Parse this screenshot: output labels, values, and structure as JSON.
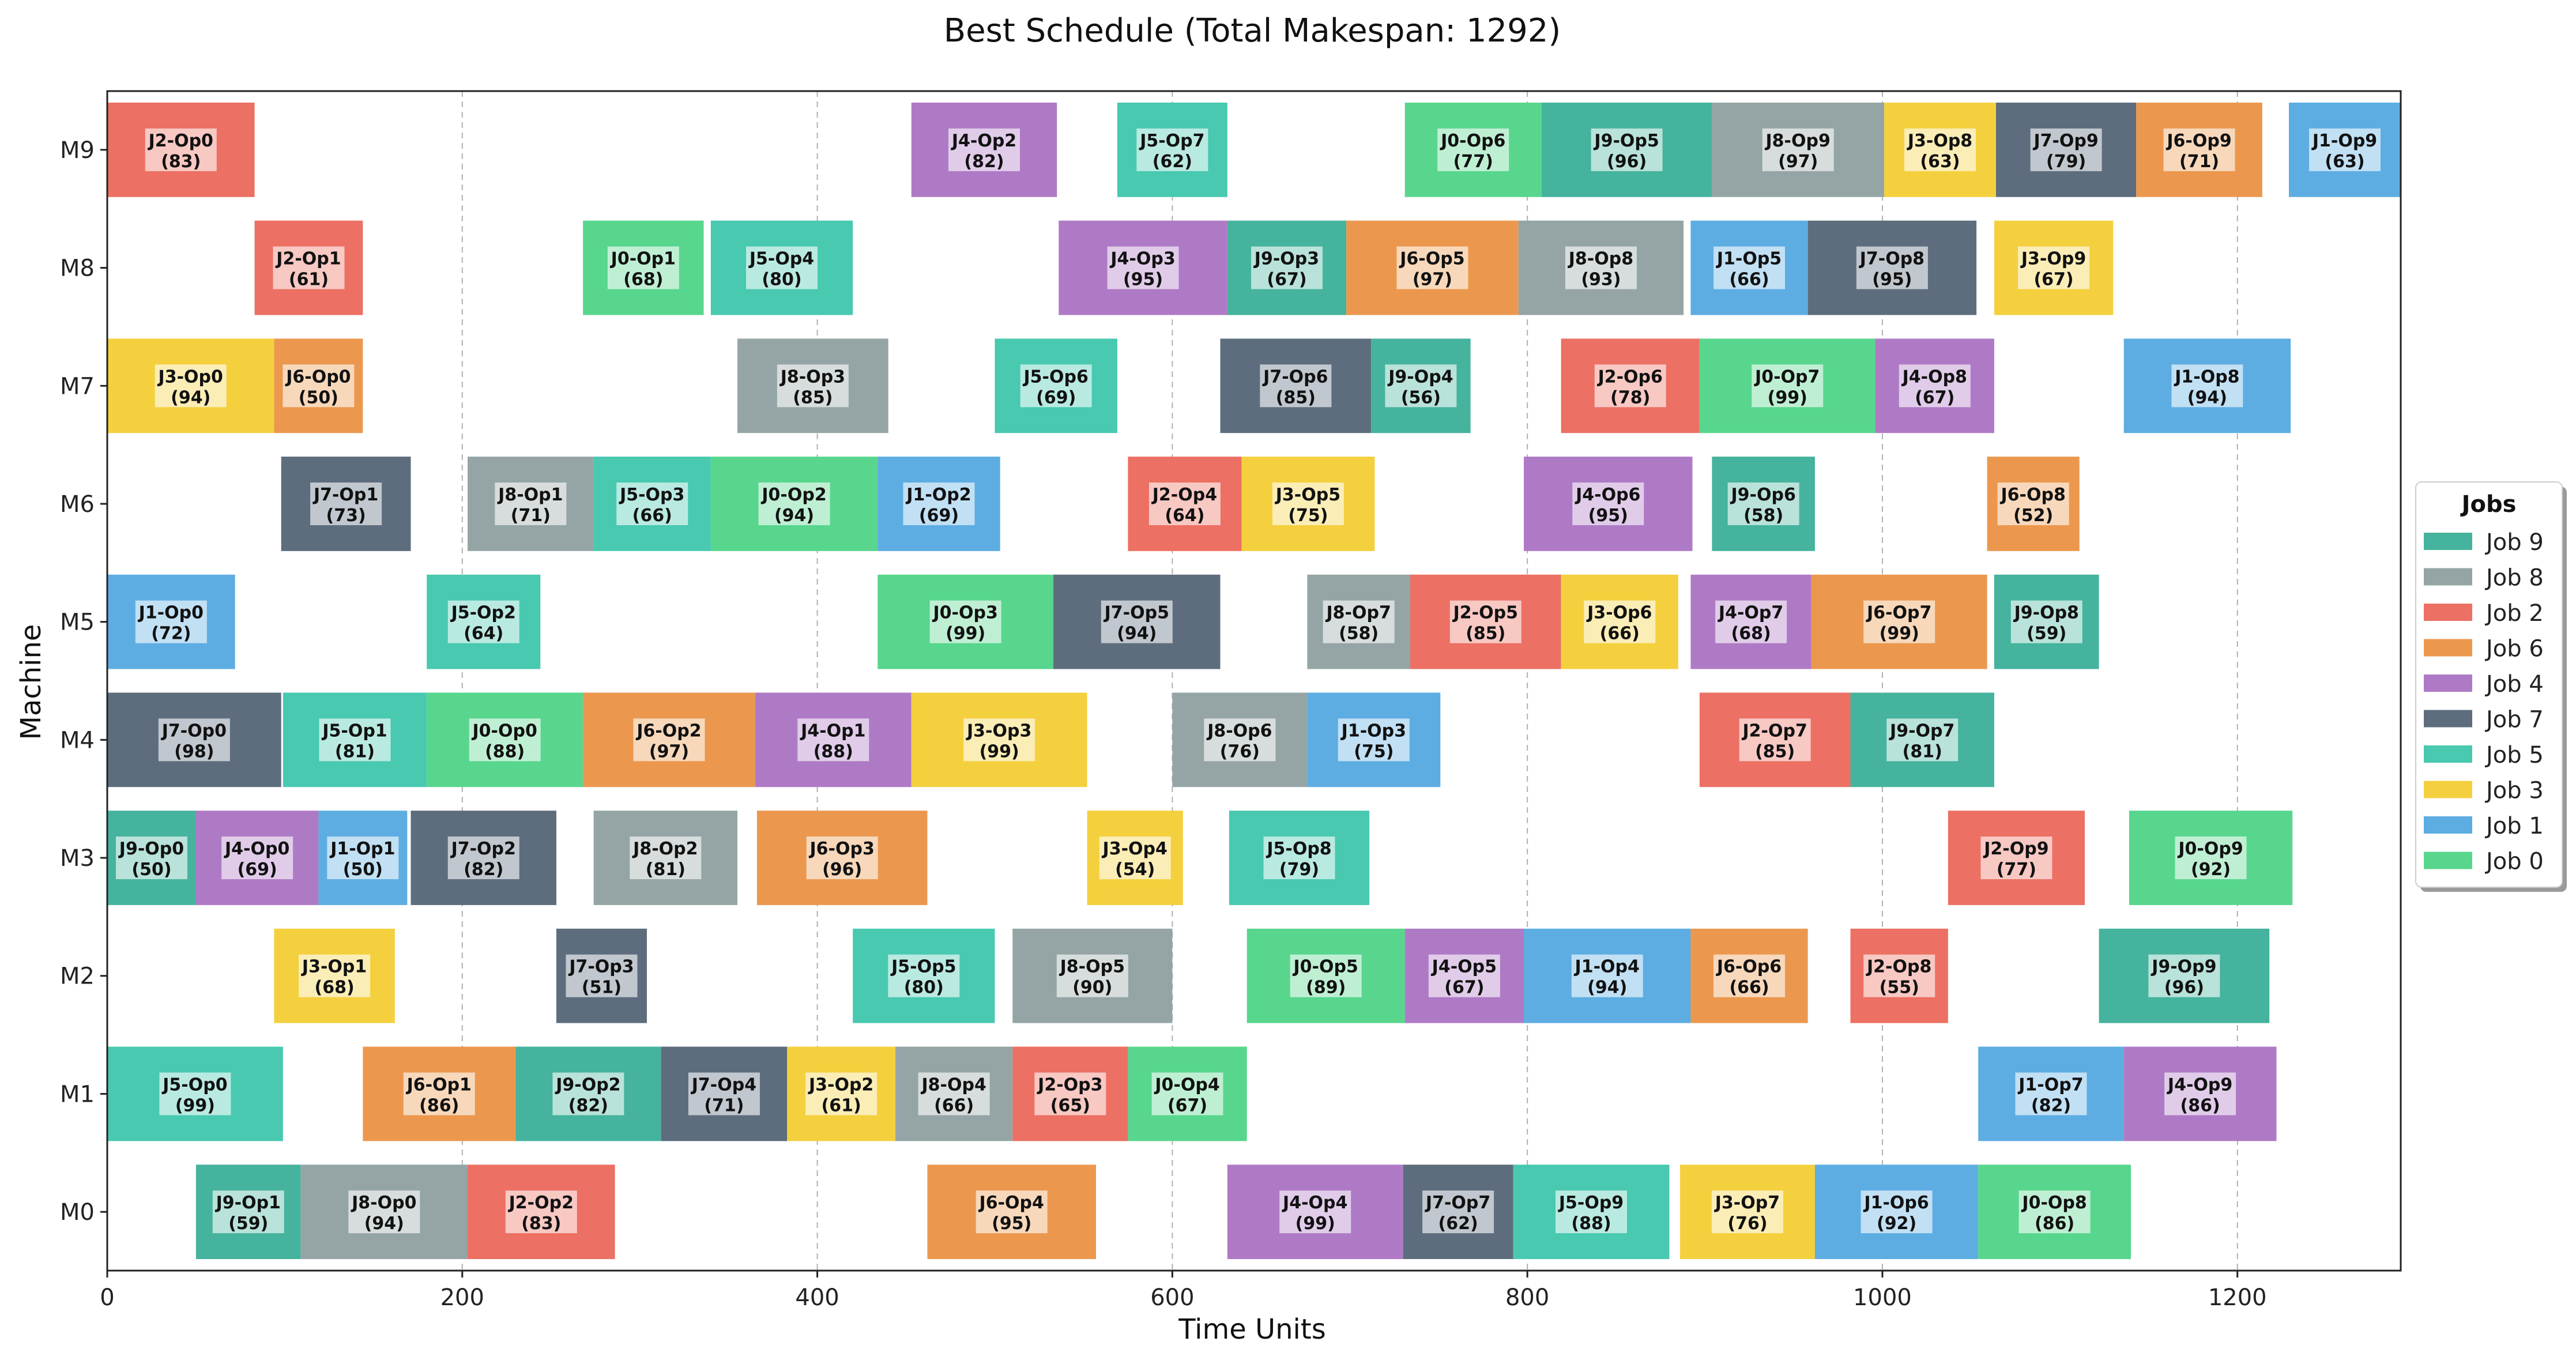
{
  "chart_data": {
    "type": "gantt",
    "title": "Best Schedule (Total Makespan: 1292)",
    "xlabel": "Time Units",
    "ylabel": "Machine",
    "xlim": [
      0,
      1292
    ],
    "x_ticks": [
      0,
      200,
      400,
      600,
      800,
      1000,
      1200
    ],
    "machines": [
      "M0",
      "M1",
      "M2",
      "M3",
      "M4",
      "M5",
      "M6",
      "M7",
      "M8",
      "M9"
    ],
    "grid": "vertical dashed",
    "legend": {
      "title": "Jobs",
      "placement": "right",
      "entries": [
        {
          "label": "Job 9",
          "color": "#45b39d"
        },
        {
          "label": "Job 8",
          "color": "#95a5a6"
        },
        {
          "label": "Job 2",
          "color": "#ec7063"
        },
        {
          "label": "Job 6",
          "color": "#eb984e"
        },
        {
          "label": "Job 4",
          "color": "#af7ac5"
        },
        {
          "label": "Job 7",
          "color": "#5d6d7e"
        },
        {
          "label": "Job 5",
          "color": "#48c9b0"
        },
        {
          "label": "Job 3",
          "color": "#f4d03f"
        },
        {
          "label": "Job 1",
          "color": "#5dade2"
        },
        {
          "label": "Job 0",
          "color": "#58d68d"
        }
      ]
    },
    "job_colors": {
      "0": "#58d68d",
      "1": "#5dade2",
      "2": "#ec7063",
      "3": "#f4d03f",
      "4": "#af7ac5",
      "5": "#48c9b0",
      "6": "#eb984e",
      "7": "#5d6d7e",
      "8": "#95a5a6",
      "9": "#45b39d"
    },
    "operations": [
      {
        "machine": "M0",
        "job": 9,
        "start": 50,
        "duration": 59,
        "label": "J9-Op1",
        "sub": "(59)"
      },
      {
        "machine": "M0",
        "job": 8,
        "start": 109,
        "duration": 94,
        "label": "J8-Op0",
        "sub": "(94)"
      },
      {
        "machine": "M0",
        "job": 2,
        "start": 203,
        "duration": 83,
        "label": "J2-Op2",
        "sub": "(83)"
      },
      {
        "machine": "M0",
        "job": 6,
        "start": 462,
        "duration": 95,
        "label": "J6-Op4",
        "sub": "(95)"
      },
      {
        "machine": "M0",
        "job": 4,
        "start": 631,
        "duration": 99,
        "label": "J4-Op4",
        "sub": "(99)"
      },
      {
        "machine": "M0",
        "job": 7,
        "start": 730,
        "duration": 62,
        "label": "J7-Op7",
        "sub": "(62)"
      },
      {
        "machine": "M0",
        "job": 5,
        "start": 792,
        "duration": 88,
        "label": "J5-Op9",
        "sub": "(88)"
      },
      {
        "machine": "M0",
        "job": 3,
        "start": 886,
        "duration": 76,
        "label": "J3-Op7",
        "sub": "(76)"
      },
      {
        "machine": "M0",
        "job": 1,
        "start": 962,
        "duration": 92,
        "label": "J1-Op6",
        "sub": "(92)"
      },
      {
        "machine": "M0",
        "job": 0,
        "start": 1054,
        "duration": 86,
        "label": "J0-Op8",
        "sub": "(86)"
      },
      {
        "machine": "M1",
        "job": 5,
        "start": 0,
        "duration": 99,
        "label": "J5-Op0",
        "sub": "(99)"
      },
      {
        "machine": "M1",
        "job": 6,
        "start": 144,
        "duration": 86,
        "label": "J6-Op1",
        "sub": "(86)"
      },
      {
        "machine": "M1",
        "job": 9,
        "start": 230,
        "duration": 82,
        "label": "J9-Op2",
        "sub": "(82)"
      },
      {
        "machine": "M1",
        "job": 7,
        "start": 312,
        "duration": 71,
        "label": "J7-Op4",
        "sub": "(71)"
      },
      {
        "machine": "M1",
        "job": 3,
        "start": 383,
        "duration": 61,
        "label": "J3-Op2",
        "sub": "(61)"
      },
      {
        "machine": "M1",
        "job": 8,
        "start": 444,
        "duration": 66,
        "label": "J8-Op4",
        "sub": "(66)"
      },
      {
        "machine": "M1",
        "job": 2,
        "start": 510,
        "duration": 65,
        "label": "J2-Op3",
        "sub": "(65)"
      },
      {
        "machine": "M1",
        "job": 0,
        "start": 575,
        "duration": 67,
        "label": "J0-Op4",
        "sub": "(67)"
      },
      {
        "machine": "M1",
        "job": 1,
        "start": 1054,
        "duration": 82,
        "label": "J1-Op7",
        "sub": "(82)"
      },
      {
        "machine": "M1",
        "job": 4,
        "start": 1136,
        "duration": 86,
        "label": "J4-Op9",
        "sub": "(86)"
      },
      {
        "machine": "M2",
        "job": 3,
        "start": 94,
        "duration": 68,
        "label": "J3-Op1",
        "sub": "(68)"
      },
      {
        "machine": "M2",
        "job": 7,
        "start": 253,
        "duration": 51,
        "label": "J7-Op3",
        "sub": "(51)"
      },
      {
        "machine": "M2",
        "job": 5,
        "start": 420,
        "duration": 80,
        "label": "J5-Op5",
        "sub": "(80)"
      },
      {
        "machine": "M2",
        "job": 8,
        "start": 510,
        "duration": 90,
        "label": "J8-Op5",
        "sub": "(90)"
      },
      {
        "machine": "M2",
        "job": 0,
        "start": 642,
        "duration": 89,
        "label": "J0-Op5",
        "sub": "(89)"
      },
      {
        "machine": "M2",
        "job": 4,
        "start": 731,
        "duration": 67,
        "label": "J4-Op5",
        "sub": "(67)"
      },
      {
        "machine": "M2",
        "job": 1,
        "start": 798,
        "duration": 94,
        "label": "J1-Op4",
        "sub": "(94)"
      },
      {
        "machine": "M2",
        "job": 6,
        "start": 892,
        "duration": 66,
        "label": "J6-Op6",
        "sub": "(66)"
      },
      {
        "machine": "M2",
        "job": 2,
        "start": 982,
        "duration": 55,
        "label": "J2-Op8",
        "sub": "(55)"
      },
      {
        "machine": "M2",
        "job": 9,
        "start": 1122,
        "duration": 96,
        "label": "J9-Op9",
        "sub": "(96)"
      },
      {
        "machine": "M3",
        "job": 9,
        "start": 0,
        "duration": 50,
        "label": "J9-Op0",
        "sub": "(50)"
      },
      {
        "machine": "M3",
        "job": 4,
        "start": 50,
        "duration": 69,
        "label": "J4-Op0",
        "sub": "(69)"
      },
      {
        "machine": "M3",
        "job": 1,
        "start": 119,
        "duration": 50,
        "label": "J1-Op1",
        "sub": "(50)"
      },
      {
        "machine": "M3",
        "job": 7,
        "start": 171,
        "duration": 82,
        "label": "J7-Op2",
        "sub": "(82)"
      },
      {
        "machine": "M3",
        "job": 8,
        "start": 274,
        "duration": 81,
        "label": "J8-Op2",
        "sub": "(81)"
      },
      {
        "machine": "M3",
        "job": 6,
        "start": 366,
        "duration": 96,
        "label": "J6-Op3",
        "sub": "(96)"
      },
      {
        "machine": "M3",
        "job": 3,
        "start": 552,
        "duration": 54,
        "label": "J3-Op4",
        "sub": "(54)"
      },
      {
        "machine": "M3",
        "job": 5,
        "start": 632,
        "duration": 79,
        "label": "J5-Op8",
        "sub": "(79)"
      },
      {
        "machine": "M3",
        "job": 2,
        "start": 1037,
        "duration": 77,
        "label": "J2-Op9",
        "sub": "(77)"
      },
      {
        "machine": "M3",
        "job": 0,
        "start": 1139,
        "duration": 92,
        "label": "J0-Op9",
        "sub": "(92)"
      },
      {
        "machine": "M4",
        "job": 7,
        "start": 0,
        "duration": 98,
        "label": "J7-Op0",
        "sub": "(98)"
      },
      {
        "machine": "M4",
        "job": 5,
        "start": 99,
        "duration": 81,
        "label": "J5-Op1",
        "sub": "(81)"
      },
      {
        "machine": "M4",
        "job": 0,
        "start": 180,
        "duration": 88,
        "label": "J0-Op0",
        "sub": "(88)"
      },
      {
        "machine": "M4",
        "job": 6,
        "start": 268,
        "duration": 97,
        "label": "J6-Op2",
        "sub": "(97)"
      },
      {
        "machine": "M4",
        "job": 4,
        "start": 365,
        "duration": 88,
        "label": "J4-Op1",
        "sub": "(88)"
      },
      {
        "machine": "M4",
        "job": 3,
        "start": 453,
        "duration": 99,
        "label": "J3-Op3",
        "sub": "(99)"
      },
      {
        "machine": "M4",
        "job": 8,
        "start": 600,
        "duration": 76,
        "label": "J8-Op6",
        "sub": "(76)"
      },
      {
        "machine": "M4",
        "job": 1,
        "start": 676,
        "duration": 75,
        "label": "J1-Op3",
        "sub": "(75)"
      },
      {
        "machine": "M4",
        "job": 2,
        "start": 897,
        "duration": 85,
        "label": "J2-Op7",
        "sub": "(85)"
      },
      {
        "machine": "M4",
        "job": 9,
        "start": 982,
        "duration": 81,
        "label": "J9-Op7",
        "sub": "(81)"
      },
      {
        "machine": "M5",
        "job": 1,
        "start": 0,
        "duration": 72,
        "label": "J1-Op0",
        "sub": "(72)"
      },
      {
        "machine": "M5",
        "job": 5,
        "start": 180,
        "duration": 64,
        "label": "J5-Op2",
        "sub": "(64)"
      },
      {
        "machine": "M5",
        "job": 0,
        "start": 434,
        "duration": 99,
        "label": "J0-Op3",
        "sub": "(99)"
      },
      {
        "machine": "M5",
        "job": 7,
        "start": 533,
        "duration": 94,
        "label": "J7-Op5",
        "sub": "(94)"
      },
      {
        "machine": "M5",
        "job": 8,
        "start": 676,
        "duration": 58,
        "label": "J8-Op7",
        "sub": "(58)"
      },
      {
        "machine": "M5",
        "job": 2,
        "start": 734,
        "duration": 85,
        "label": "J2-Op5",
        "sub": "(85)"
      },
      {
        "machine": "M5",
        "job": 3,
        "start": 819,
        "duration": 66,
        "label": "J3-Op6",
        "sub": "(66)"
      },
      {
        "machine": "M5",
        "job": 4,
        "start": 892,
        "duration": 68,
        "label": "J4-Op7",
        "sub": "(68)"
      },
      {
        "machine": "M5",
        "job": 6,
        "start": 960,
        "duration": 99,
        "label": "J6-Op7",
        "sub": "(99)"
      },
      {
        "machine": "M5",
        "job": 9,
        "start": 1063,
        "duration": 59,
        "label": "J9-Op8",
        "sub": "(59)"
      },
      {
        "machine": "M6",
        "job": 7,
        "start": 98,
        "duration": 73,
        "label": "J7-Op1",
        "sub": "(73)"
      },
      {
        "machine": "M6",
        "job": 8,
        "start": 203,
        "duration": 71,
        "label": "J8-Op1",
        "sub": "(71)"
      },
      {
        "machine": "M6",
        "job": 5,
        "start": 274,
        "duration": 66,
        "label": "J5-Op3",
        "sub": "(66)"
      },
      {
        "machine": "M6",
        "job": 0,
        "start": 340,
        "duration": 94,
        "label": "J0-Op2",
        "sub": "(94)"
      },
      {
        "machine": "M6",
        "job": 1,
        "start": 434,
        "duration": 69,
        "label": "J1-Op2",
        "sub": "(69)"
      },
      {
        "machine": "M6",
        "job": 2,
        "start": 575,
        "duration": 64,
        "label": "J2-Op4",
        "sub": "(64)"
      },
      {
        "machine": "M6",
        "job": 3,
        "start": 639,
        "duration": 75,
        "label": "J3-Op5",
        "sub": "(75)"
      },
      {
        "machine": "M6",
        "job": 4,
        "start": 798,
        "duration": 95,
        "label": "J4-Op6",
        "sub": "(95)"
      },
      {
        "machine": "M6",
        "job": 9,
        "start": 904,
        "duration": 58,
        "label": "J9-Op6",
        "sub": "(58)"
      },
      {
        "machine": "M6",
        "job": 6,
        "start": 1059,
        "duration": 52,
        "label": "J6-Op8",
        "sub": "(52)"
      },
      {
        "machine": "M7",
        "job": 3,
        "start": 0,
        "duration": 94,
        "label": "J3-Op0",
        "sub": "(94)"
      },
      {
        "machine": "M7",
        "job": 6,
        "start": 94,
        "duration": 50,
        "label": "J6-Op0",
        "sub": "(50)"
      },
      {
        "machine": "M7",
        "job": 8,
        "start": 355,
        "duration": 85,
        "label": "J8-Op3",
        "sub": "(85)"
      },
      {
        "machine": "M7",
        "job": 5,
        "start": 500,
        "duration": 69,
        "label": "J5-Op6",
        "sub": "(69)"
      },
      {
        "machine": "M7",
        "job": 7,
        "start": 627,
        "duration": 85,
        "label": "J7-Op6",
        "sub": "(85)"
      },
      {
        "machine": "M7",
        "job": 9,
        "start": 712,
        "duration": 56,
        "label": "J9-Op4",
        "sub": "(56)"
      },
      {
        "machine": "M7",
        "job": 2,
        "start": 819,
        "duration": 78,
        "label": "J2-Op6",
        "sub": "(78)"
      },
      {
        "machine": "M7",
        "job": 0,
        "start": 897,
        "duration": 99,
        "label": "J0-Op7",
        "sub": "(99)"
      },
      {
        "machine": "M7",
        "job": 4,
        "start": 996,
        "duration": 67,
        "label": "J4-Op8",
        "sub": "(67)"
      },
      {
        "machine": "M7",
        "job": 1,
        "start": 1136,
        "duration": 94,
        "label": "J1-Op8",
        "sub": "(94)"
      },
      {
        "machine": "M8",
        "job": 2,
        "start": 83,
        "duration": 61,
        "label": "J2-Op1",
        "sub": "(61)"
      },
      {
        "machine": "M8",
        "job": 0,
        "start": 268,
        "duration": 68,
        "label": "J0-Op1",
        "sub": "(68)"
      },
      {
        "machine": "M8",
        "job": 5,
        "start": 340,
        "duration": 80,
        "label": "J5-Op4",
        "sub": "(80)"
      },
      {
        "machine": "M8",
        "job": 4,
        "start": 536,
        "duration": 95,
        "label": "J4-Op3",
        "sub": "(95)"
      },
      {
        "machine": "M8",
        "job": 9,
        "start": 631,
        "duration": 67,
        "label": "J9-Op3",
        "sub": "(67)"
      },
      {
        "machine": "M8",
        "job": 6,
        "start": 698,
        "duration": 97,
        "label": "J6-Op5",
        "sub": "(97)"
      },
      {
        "machine": "M8",
        "job": 8,
        "start": 795,
        "duration": 93,
        "label": "J8-Op8",
        "sub": "(93)"
      },
      {
        "machine": "M8",
        "job": 1,
        "start": 892,
        "duration": 66,
        "label": "J1-Op5",
        "sub": "(66)"
      },
      {
        "machine": "M8",
        "job": 7,
        "start": 958,
        "duration": 95,
        "label": "J7-Op8",
        "sub": "(95)"
      },
      {
        "machine": "M8",
        "job": 3,
        "start": 1063,
        "duration": 67,
        "label": "J3-Op9",
        "sub": "(67)"
      },
      {
        "machine": "M9",
        "job": 2,
        "start": 0,
        "duration": 83,
        "label": "J2-Op0",
        "sub": "(83)"
      },
      {
        "machine": "M9",
        "job": 4,
        "start": 453,
        "duration": 82,
        "label": "J4-Op2",
        "sub": "(82)"
      },
      {
        "machine": "M9",
        "job": 5,
        "start": 569,
        "duration": 62,
        "label": "J5-Op7",
        "sub": "(62)"
      },
      {
        "machine": "M9",
        "job": 0,
        "start": 731,
        "duration": 77,
        "label": "J0-Op6",
        "sub": "(77)"
      },
      {
        "machine": "M9",
        "job": 9,
        "start": 808,
        "duration": 96,
        "label": "J9-Op5",
        "sub": "(96)"
      },
      {
        "machine": "M9",
        "job": 8,
        "start": 904,
        "duration": 97,
        "label": "J8-Op9",
        "sub": "(97)"
      },
      {
        "machine": "M9",
        "job": 3,
        "start": 1001,
        "duration": 63,
        "label": "J3-Op8",
        "sub": "(63)"
      },
      {
        "machine": "M9",
        "job": 7,
        "start": 1064,
        "duration": 79,
        "label": "J7-Op9",
        "sub": "(79)"
      },
      {
        "machine": "M9",
        "job": 6,
        "start": 1143,
        "duration": 71,
        "label": "J6-Op9",
        "sub": "(71)"
      },
      {
        "machine": "M9",
        "job": 1,
        "start": 1229,
        "duration": 63,
        "label": "J1-Op9",
        "sub": "(63)"
      }
    ]
  }
}
